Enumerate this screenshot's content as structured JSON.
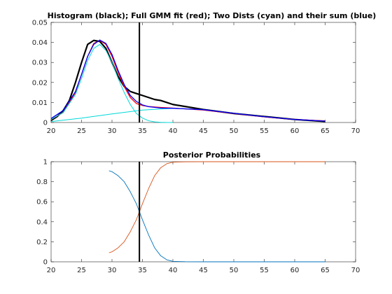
{
  "chart_data": [
    {
      "type": "line",
      "title": "Histogram (black); Full GMM fit (red); Two Dists (cyan) and their sum (blue)",
      "xlabel": "",
      "ylabel": "",
      "xlim": [
        20,
        70
      ],
      "ylim": [
        0,
        0.05
      ],
      "x_ticks": [
        "20",
        "25",
        "30",
        "35",
        "40",
        "45",
        "50",
        "55",
        "60",
        "65",
        "70"
      ],
      "y_ticks": [
        "0",
        "0.01",
        "0.02",
        "0.03",
        "0.04",
        "0.05"
      ],
      "grid": false,
      "legend": "none",
      "vertical_line_x": 34.5,
      "series": [
        {
          "role": "histogram",
          "color": "#000000",
          "x": [
            20,
            21,
            22,
            23,
            24,
            25,
            26,
            27,
            28,
            29,
            30,
            31,
            32,
            33,
            34,
            35,
            36,
            37,
            38,
            40,
            42,
            45,
            50,
            55,
            60,
            65
          ],
          "y": [
            0.001,
            0.003,
            0.006,
            0.011,
            0.02,
            0.03,
            0.039,
            0.041,
            0.0405,
            0.037,
            0.03,
            0.023,
            0.018,
            0.0155,
            0.0145,
            0.0135,
            0.0125,
            0.0115,
            0.011,
            0.009,
            0.008,
            0.0065,
            0.0045,
            0.003,
            0.0015,
            0.0005
          ]
        },
        {
          "role": "full-gmm-fit",
          "color": "#ff0000",
          "x": [
            20,
            22,
            24,
            25,
            26,
            27,
            28,
            29,
            30,
            31,
            32,
            33,
            34,
            35,
            36,
            38,
            40,
            45,
            50,
            55,
            60,
            65
          ],
          "y": [
            0.0015,
            0.005,
            0.015,
            0.024,
            0.033,
            0.0395,
            0.041,
            0.039,
            0.033,
            0.025,
            0.018,
            0.0125,
            0.0095,
            0.0085,
            0.008,
            0.0075,
            0.0072,
            0.0062,
            0.0045,
            0.0028,
            0.0015,
            0.0008
          ]
        },
        {
          "role": "component-1",
          "color": "#00d8d8",
          "x": [
            20,
            22,
            24,
            25,
            26,
            27,
            28,
            29,
            30,
            31,
            32,
            33,
            34,
            35,
            36,
            37,
            38,
            39,
            40
          ],
          "y": [
            0.0015,
            0.005,
            0.014,
            0.022,
            0.031,
            0.037,
            0.039,
            0.036,
            0.03,
            0.022,
            0.015,
            0.009,
            0.0045,
            0.0022,
            0.0009,
            0.0003,
            0.0001,
            0,
            0
          ]
        },
        {
          "role": "component-2",
          "color": "#00d8d8",
          "x": [
            20,
            25,
            30,
            35,
            40,
            45,
            50,
            55,
            60,
            65
          ],
          "y": [
            0.0005,
            0.0022,
            0.0043,
            0.0062,
            0.0071,
            0.0064,
            0.0046,
            0.0029,
            0.0015,
            0.0007
          ]
        },
        {
          "role": "sum",
          "color": "#0000ff",
          "x": [
            20,
            22,
            24,
            25,
            26,
            27,
            28,
            29,
            30,
            31,
            32,
            33,
            34,
            35,
            36,
            38,
            40,
            45,
            50,
            55,
            60,
            65
          ],
          "y": [
            0.002,
            0.006,
            0.0155,
            0.024,
            0.033,
            0.039,
            0.0412,
            0.0395,
            0.034,
            0.026,
            0.019,
            0.0135,
            0.0105,
            0.0088,
            0.0079,
            0.0072,
            0.0071,
            0.0064,
            0.0046,
            0.0029,
            0.0015,
            0.0007
          ]
        }
      ]
    },
    {
      "type": "line",
      "title": "Posterior Probabilities",
      "xlabel": "",
      "ylabel": "",
      "xlim": [
        20,
        70
      ],
      "ylim": [
        0,
        1
      ],
      "x_ticks": [
        "20",
        "25",
        "30",
        "35",
        "40",
        "45",
        "50",
        "55",
        "60",
        "65",
        "70"
      ],
      "y_ticks": [
        "0",
        "0.2",
        "0.4",
        "0.6",
        "0.8",
        "1"
      ],
      "grid": false,
      "legend": "none",
      "vertical_line_x": 34.5,
      "series": [
        {
          "role": "posterior-component-1",
          "color": "#0072bd",
          "x": [
            29.5,
            30,
            31,
            32,
            33,
            34,
            34.5,
            35,
            36,
            37,
            38,
            39,
            40,
            42,
            45,
            50,
            55,
            60,
            65
          ],
          "y": [
            0.91,
            0.9,
            0.86,
            0.8,
            0.7,
            0.58,
            0.5,
            0.42,
            0.27,
            0.14,
            0.06,
            0.02,
            0.005,
            0.001,
            0,
            0,
            0,
            0,
            0
          ]
        },
        {
          "role": "posterior-component-2",
          "color": "#d95319",
          "x": [
            29.5,
            30,
            31,
            32,
            33,
            34,
            34.5,
            35,
            36,
            37,
            38,
            39,
            40,
            42,
            45,
            50,
            55,
            60,
            65
          ],
          "y": [
            0.09,
            0.1,
            0.14,
            0.2,
            0.3,
            0.42,
            0.5,
            0.58,
            0.73,
            0.86,
            0.94,
            0.98,
            0.995,
            0.999,
            1,
            1,
            1,
            1,
            1
          ]
        }
      ]
    }
  ]
}
